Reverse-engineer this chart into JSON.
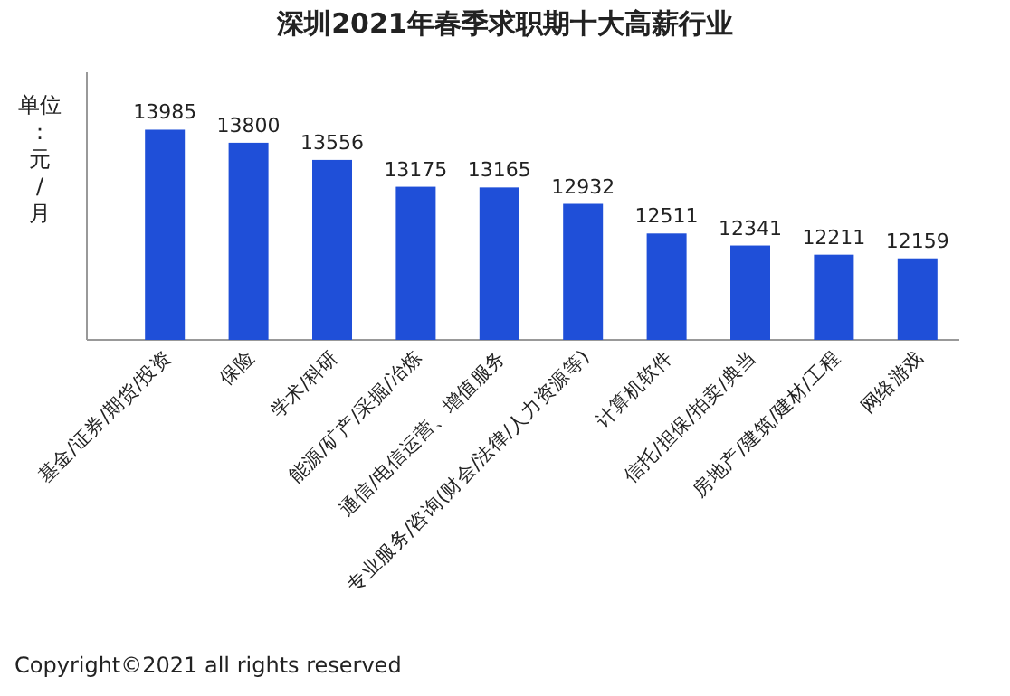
{
  "chart_data": {
    "type": "bar",
    "title": "深圳2021年春季求职期十大高薪行业",
    "ylabel": "单位：元/月",
    "categories": [
      "基金/证券/期货/投资",
      "保险",
      "学术/科研",
      "能源/矿产/采掘/冶炼",
      "通信/电信运营、增值服务",
      "专业服务/咨询(财会/法律/人力资源等)",
      "计算机软件",
      "信托/担保/拍卖/典当",
      "房地产/建筑/建材/工程",
      "网络游戏"
    ],
    "values": [
      13985,
      13800,
      13556,
      13175,
      13165,
      12932,
      12511,
      12341,
      12211,
      12159
    ],
    "color": "#1f4fd8",
    "ylim": [
      11000,
      14800
    ],
    "data_labels": true,
    "annotations": [
      "Copyright©2021 all rights reserved"
    ]
  }
}
